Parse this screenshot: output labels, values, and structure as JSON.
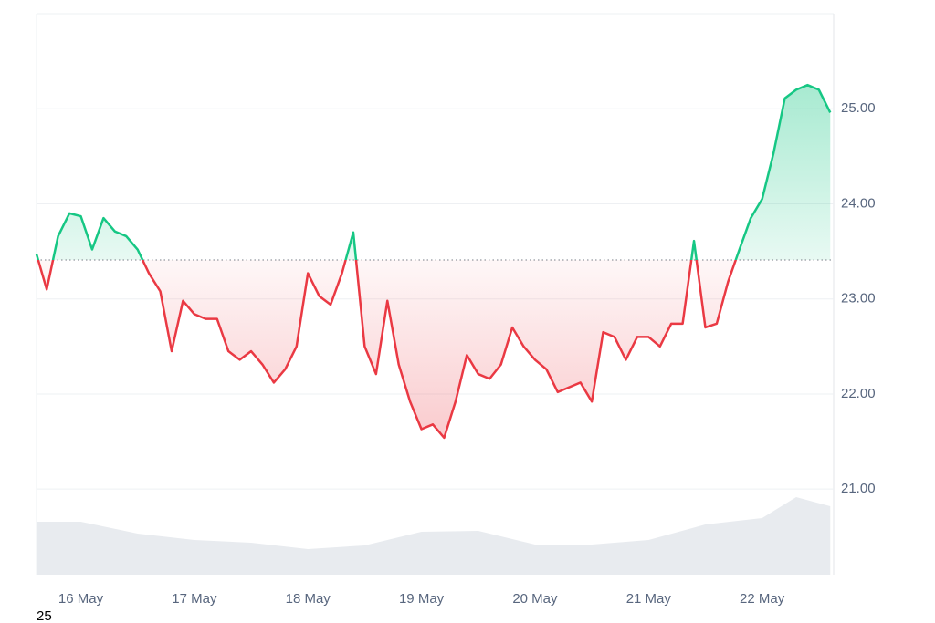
{
  "chart_data": {
    "type": "baseline-line",
    "footnote": "25",
    "baseline": 23.41,
    "up_color": "#16c784",
    "down_color": "#ea3943",
    "x": [
      15.61,
      15.7,
      15.8,
      15.9,
      16.0,
      16.1,
      16.2,
      16.3,
      16.4,
      16.5,
      16.6,
      16.7,
      16.8,
      16.9,
      17.0,
      17.1,
      17.2,
      17.3,
      17.4,
      17.5,
      17.6,
      17.7,
      17.8,
      17.9,
      18.0,
      18.1,
      18.2,
      18.3,
      18.4,
      18.5,
      18.6,
      18.7,
      18.8,
      18.9,
      19.0,
      19.1,
      19.2,
      19.3,
      19.4,
      19.5,
      19.6,
      19.7,
      19.8,
      19.9,
      20.0,
      20.1,
      20.2,
      20.3,
      20.4,
      20.5,
      20.6,
      20.7,
      20.8,
      20.9,
      21.0,
      21.1,
      21.2,
      21.3,
      21.4,
      21.5,
      21.6,
      21.7,
      21.8,
      21.9,
      22.0,
      22.1,
      22.2,
      22.3,
      22.4,
      22.5,
      22.6
    ],
    "values": [
      23.47,
      23.1,
      23.66,
      23.9,
      23.87,
      23.52,
      23.85,
      23.71,
      23.66,
      23.52,
      23.27,
      23.08,
      22.45,
      22.98,
      22.84,
      22.79,
      22.79,
      22.45,
      22.36,
      22.45,
      22.31,
      22.12,
      22.26,
      22.5,
      23.27,
      23.03,
      22.94,
      23.27,
      23.7,
      22.5,
      22.21,
      22.98,
      22.31,
      21.92,
      21.63,
      21.68,
      21.54,
      21.92,
      22.41,
      22.21,
      22.16,
      22.31,
      22.7,
      22.5,
      22.36,
      22.26,
      22.02,
      22.07,
      22.12,
      21.92,
      22.65,
      22.6,
      22.36,
      22.6,
      22.6,
      22.5,
      22.74,
      22.74,
      23.61,
      22.7,
      22.74,
      23.18,
      23.52,
      23.85,
      24.05,
      24.53,
      25.11,
      25.2,
      25.25,
      25.2,
      24.96
    ],
    "volume": {
      "color": "#e8ebef",
      "ylim": [
        0,
        100
      ],
      "x": [
        15.61,
        16.0,
        16.5,
        17.0,
        17.5,
        18.0,
        18.5,
        19.0,
        19.5,
        20.0,
        20.5,
        21.0,
        21.5,
        22.0,
        22.3,
        22.6
      ],
      "values": [
        58,
        58,
        45,
        38,
        35,
        28,
        32,
        47,
        48,
        33,
        33,
        38,
        55,
        62,
        85,
        75
      ]
    },
    "xlim": [
      15.61,
      22.63
    ],
    "xticks": [
      {
        "value": 16,
        "label": "16 May"
      },
      {
        "value": 17,
        "label": "17 May"
      },
      {
        "value": 18,
        "label": "18 May"
      },
      {
        "value": 19,
        "label": "19 May"
      },
      {
        "value": 20,
        "label": "20 May"
      },
      {
        "value": 21,
        "label": "21 May"
      },
      {
        "value": 22,
        "label": "22 May"
      }
    ],
    "ylim": [
      20.1,
      26.0
    ],
    "yticks": [
      {
        "value": 21,
        "label": "21.00"
      },
      {
        "value": 22,
        "label": "22.00"
      },
      {
        "value": 23,
        "label": "23.00"
      },
      {
        "value": 24,
        "label": "24.00"
      },
      {
        "value": 25,
        "label": "25.00"
      }
    ],
    "grid": true
  }
}
